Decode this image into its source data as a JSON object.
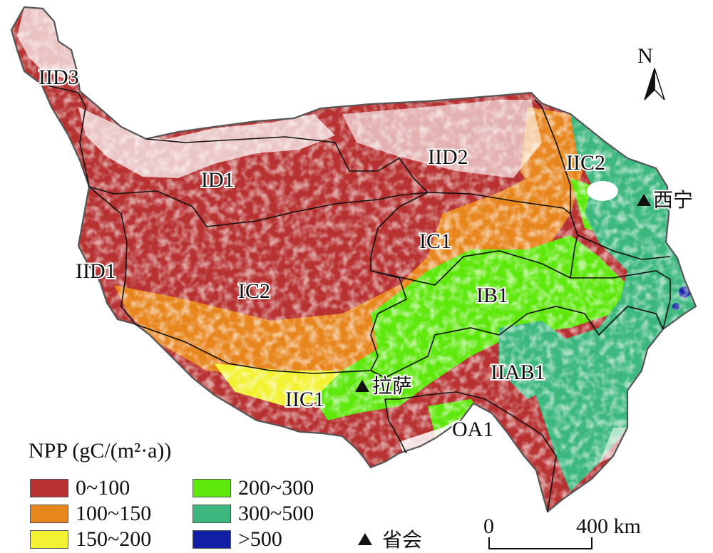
{
  "north_arrow": {
    "label": "N",
    "icon": "north-arrow-icon"
  },
  "regions": [
    {
      "name": "IID3"
    },
    {
      "name": "ID1"
    },
    {
      "name": "IID2"
    },
    {
      "name": "IIC2"
    },
    {
      "name": "IC1"
    },
    {
      "name": "IID1"
    },
    {
      "name": "IC2"
    },
    {
      "name": "IB1"
    },
    {
      "name": "IIAB1"
    },
    {
      "name": "IIC1"
    },
    {
      "name": "OA1"
    }
  ],
  "capitals": [
    {
      "name": "西宁"
    },
    {
      "name": "拉萨"
    }
  ],
  "legend": {
    "title": "NPP (gC/(m²·a))",
    "items": [
      {
        "label": "0~100",
        "color": "#b83232"
      },
      {
        "label": "100~150",
        "color": "#e8861e"
      },
      {
        "label": "150~200",
        "color": "#f2f232"
      },
      {
        "label": "200~300",
        "color": "#5ee80c"
      },
      {
        "label": "300~500",
        "color": "#3cb87e"
      },
      {
        "label": ">500",
        "color": "#101fa6"
      }
    ],
    "capital_key": "省会",
    "capital_key_icon": "triangle-icon"
  },
  "scale_bar": {
    "start_label": "0",
    "end_label": "400 km"
  }
}
